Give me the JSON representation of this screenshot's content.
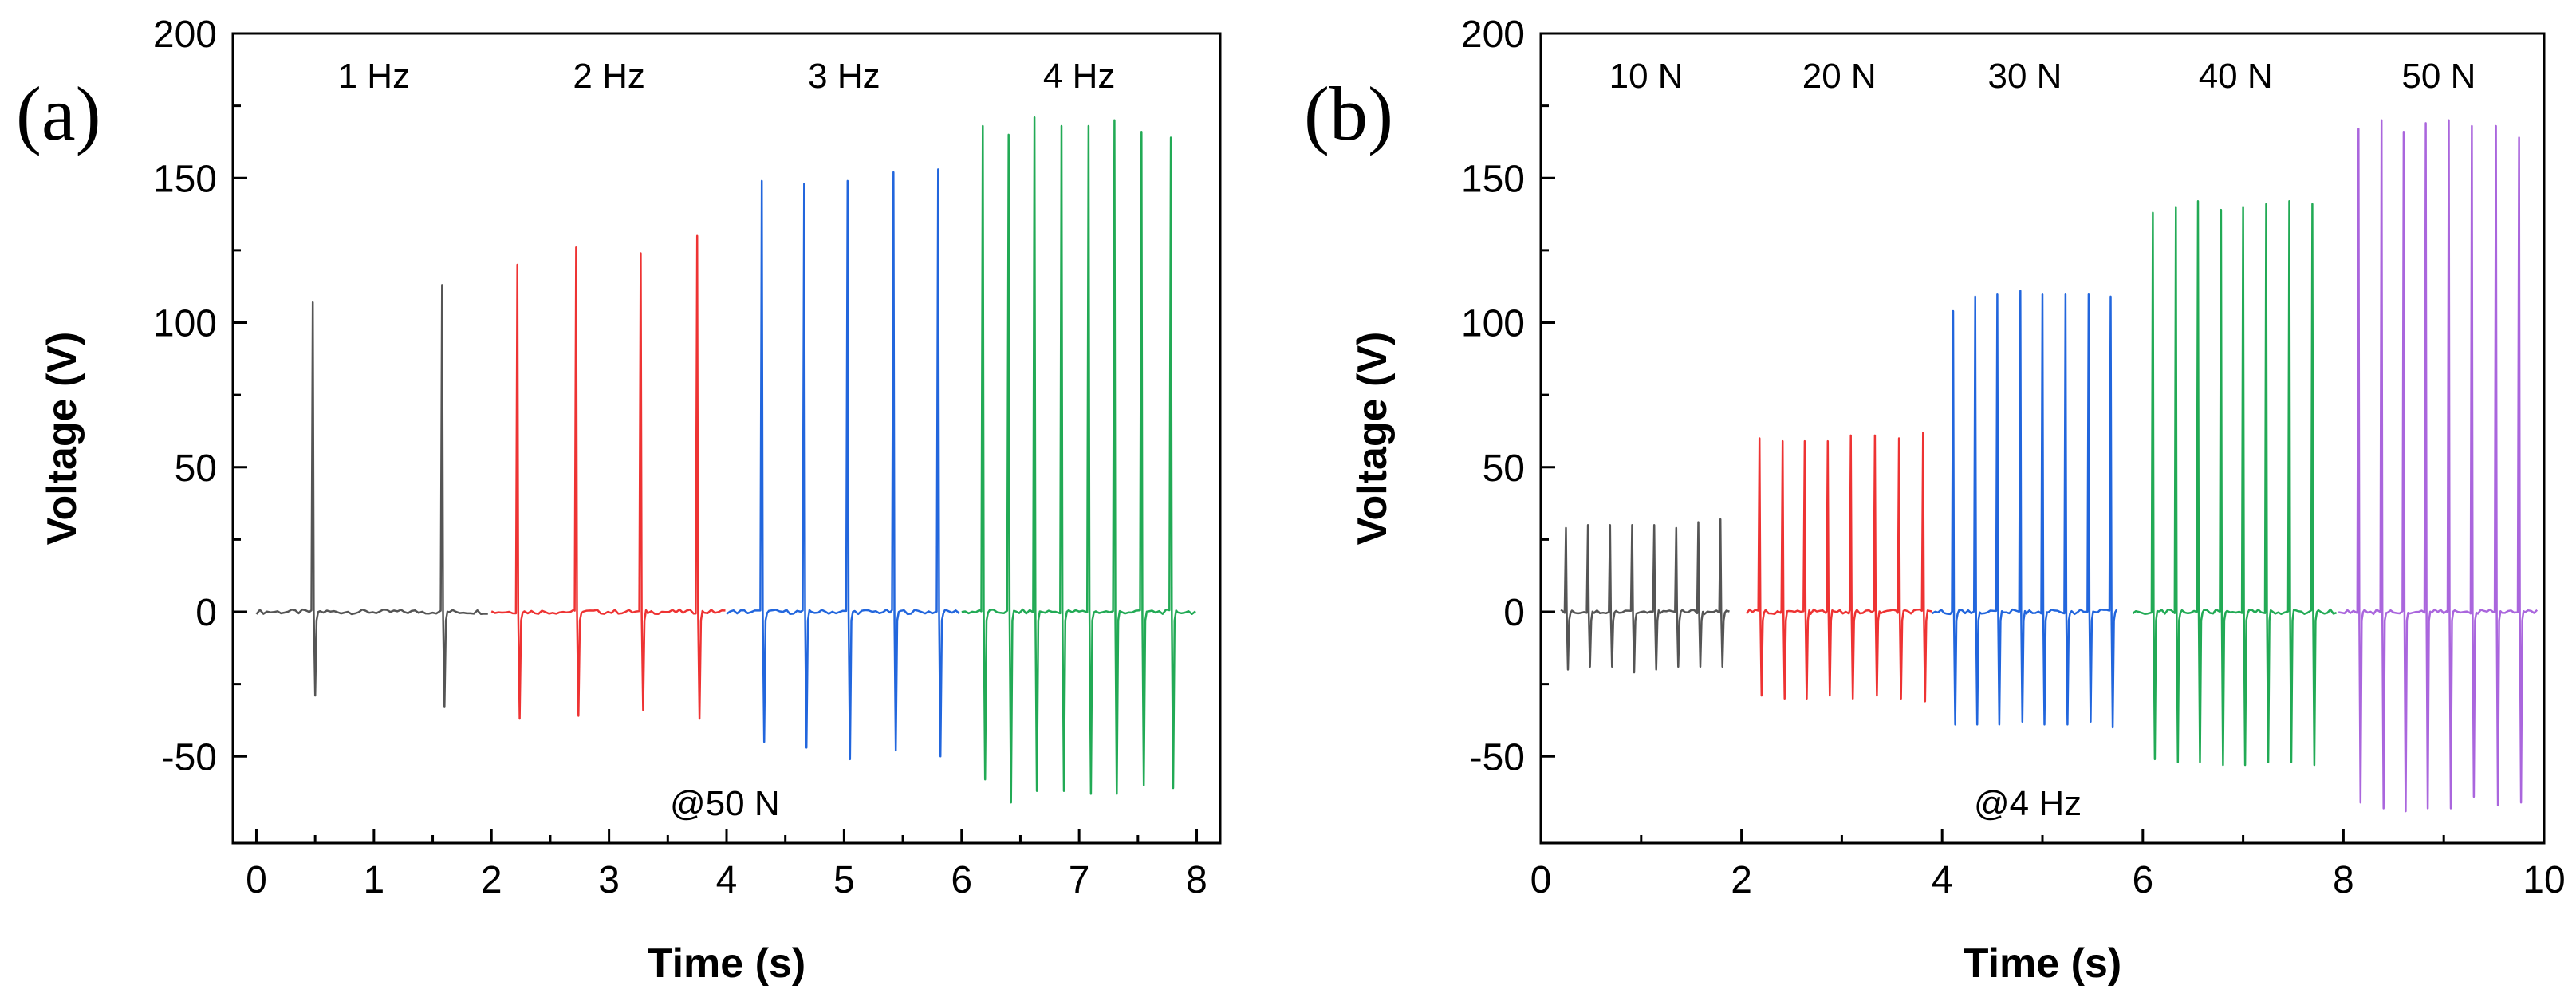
{
  "chart_data": [
    {
      "panel_label": "(a)",
      "type": "line",
      "xlabel": "Time (s)",
      "ylabel": "Voltage (V)",
      "xlim": [
        -0.2,
        8.2
      ],
      "ylim": [
        -80,
        200
      ],
      "xticks": [
        0,
        1,
        2,
        3,
        4,
        5,
        6,
        7,
        8
      ],
      "yticks": [
        -50,
        0,
        50,
        100,
        150,
        200
      ],
      "condition_note": "@50 N",
      "series": [
        {
          "name": "1 Hz",
          "color": "#555555",
          "x_start": 0.0,
          "x_end": 2.0,
          "peaks": [
            {
              "t": 0.48,
              "high": 107,
              "low": -29
            },
            {
              "t": 1.58,
              "high": 113,
              "low": -33
            }
          ]
        },
        {
          "name": "2 Hz",
          "color": "#ee3333",
          "x_start": 2.0,
          "x_end": 4.0,
          "peaks": [
            {
              "t": 2.22,
              "high": 120,
              "low": -37
            },
            {
              "t": 2.72,
              "high": 126,
              "low": -36
            },
            {
              "t": 3.27,
              "high": 124,
              "low": -34
            },
            {
              "t": 3.75,
              "high": 130,
              "low": -37
            }
          ]
        },
        {
          "name": "3 Hz",
          "color": "#2266dd",
          "x_start": 4.0,
          "x_end": 6.0,
          "peaks": [
            {
              "t": 4.3,
              "high": 149,
              "low": -45
            },
            {
              "t": 4.66,
              "high": 148,
              "low": -47
            },
            {
              "t": 5.03,
              "high": 149,
              "low": -51
            },
            {
              "t": 5.42,
              "high": 152,
              "low": -48
            },
            {
              "t": 5.8,
              "high": 153,
              "low": -50
            }
          ]
        },
        {
          "name": "4 Hz",
          "color": "#22aa55",
          "x_start": 6.0,
          "x_end": 8.0,
          "peaks": [
            {
              "t": 6.18,
              "high": 168,
              "low": -58
            },
            {
              "t": 6.4,
              "high": 165,
              "low": -66
            },
            {
              "t": 6.62,
              "high": 171,
              "low": -62
            },
            {
              "t": 6.85,
              "high": 168,
              "low": -62
            },
            {
              "t": 7.08,
              "high": 168,
              "low": -63
            },
            {
              "t": 7.3,
              "high": 170,
              "low": -63
            },
            {
              "t": 7.53,
              "high": 166,
              "low": -60
            },
            {
              "t": 7.78,
              "high": 164,
              "low": -61
            }
          ]
        }
      ]
    },
    {
      "panel_label": "(b)",
      "type": "line",
      "xlabel": "Time (s)",
      "ylabel": "Voltage (V)",
      "xlim": [
        0,
        10
      ],
      "ylim": [
        -80,
        200
      ],
      "xticks": [
        0,
        2,
        4,
        6,
        8,
        10
      ],
      "yticks": [
        -50,
        0,
        50,
        100,
        150,
        200
      ],
      "condition_note": "@4 Hz",
      "series": [
        {
          "name": "10 N",
          "color": "#555555",
          "x_start": 0.2,
          "x_end": 1.9,
          "peaks": [
            {
              "t": 0.25,
              "high": 29,
              "low": -20
            },
            {
              "t": 0.47,
              "high": 30,
              "low": -19
            },
            {
              "t": 0.69,
              "high": 30,
              "low": -19
            },
            {
              "t": 0.91,
              "high": 30,
              "low": -21
            },
            {
              "t": 1.13,
              "high": 30,
              "low": -20
            },
            {
              "t": 1.35,
              "high": 29,
              "low": -19
            },
            {
              "t": 1.57,
              "high": 31,
              "low": -19
            },
            {
              "t": 1.79,
              "high": 32,
              "low": -19
            }
          ]
        },
        {
          "name": "20 N",
          "color": "#ee3333",
          "x_start": 2.05,
          "x_end": 3.9,
          "peaks": [
            {
              "t": 2.18,
              "high": 60,
              "low": -29
            },
            {
              "t": 2.41,
              "high": 59,
              "low": -30
            },
            {
              "t": 2.63,
              "high": 59,
              "low": -30
            },
            {
              "t": 2.86,
              "high": 59,
              "low": -29
            },
            {
              "t": 3.09,
              "high": 61,
              "low": -30
            },
            {
              "t": 3.33,
              "high": 61,
              "low": -29
            },
            {
              "t": 3.57,
              "high": 60,
              "low": -30
            },
            {
              "t": 3.81,
              "high": 62,
              "low": -31
            }
          ]
        },
        {
          "name": "30 N",
          "color": "#2266dd",
          "x_start": 3.9,
          "x_end": 5.75,
          "peaks": [
            {
              "t": 4.11,
              "high": 104,
              "low": -39
            },
            {
              "t": 4.33,
              "high": 109,
              "low": -39
            },
            {
              "t": 4.55,
              "high": 110,
              "low": -39
            },
            {
              "t": 4.78,
              "high": 111,
              "low": -38
            },
            {
              "t": 5.0,
              "high": 110,
              "low": -39
            },
            {
              "t": 5.23,
              "high": 110,
              "low": -39
            },
            {
              "t": 5.46,
              "high": 110,
              "low": -38
            },
            {
              "t": 5.68,
              "high": 109,
              "low": -40
            }
          ]
        },
        {
          "name": "40 N",
          "color": "#22aa55",
          "x_start": 5.9,
          "x_end": 7.95,
          "peaks": [
            {
              "t": 6.1,
              "high": 138,
              "low": -51
            },
            {
              "t": 6.33,
              "high": 140,
              "low": -52
            },
            {
              "t": 6.55,
              "high": 142,
              "low": -52
            },
            {
              "t": 6.78,
              "high": 139,
              "low": -53
            },
            {
              "t": 7.0,
              "high": 140,
              "low": -53
            },
            {
              "t": 7.23,
              "high": 141,
              "low": -52
            },
            {
              "t": 7.46,
              "high": 142,
              "low": -52
            },
            {
              "t": 7.69,
              "high": 141,
              "low": -53
            }
          ]
        },
        {
          "name": "50 N",
          "color": "#aa66dd",
          "x_start": 7.95,
          "x_end": 9.95,
          "peaks": [
            {
              "t": 8.15,
              "high": 167,
              "low": -66
            },
            {
              "t": 8.38,
              "high": 170,
              "low": -68
            },
            {
              "t": 8.6,
              "high": 166,
              "low": -69
            },
            {
              "t": 8.82,
              "high": 169,
              "low": -68
            },
            {
              "t": 9.05,
              "high": 170,
              "low": -68
            },
            {
              "t": 9.28,
              "high": 168,
              "low": -64
            },
            {
              "t": 9.52,
              "high": 168,
              "low": -67
            },
            {
              "t": 9.75,
              "high": 164,
              "low": -66
            }
          ]
        }
      ]
    }
  ]
}
